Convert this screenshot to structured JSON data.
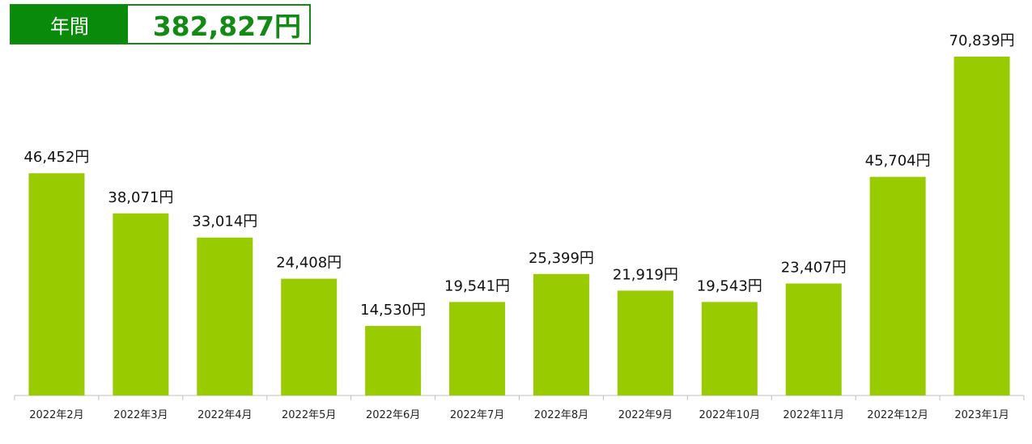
{
  "summary": {
    "label": "年間",
    "value": "382,827円"
  },
  "colors": {
    "bar": "#99cc00",
    "summary_green": "#0a8a0a",
    "axis": "#bfbfbf"
  },
  "chart_data": {
    "type": "bar",
    "categories": [
      "2022年2月",
      "2022年3月",
      "2022年4月",
      "2022年5月",
      "2022年6月",
      "2022年7月",
      "2022年8月",
      "2022年9月",
      "2022年10月",
      "2022年11月",
      "2022年12月",
      "2023年1月"
    ],
    "values": [
      46452,
      38071,
      33014,
      24408,
      14530,
      19541,
      25399,
      21919,
      19543,
      23407,
      45704,
      70839
    ],
    "data_labels": [
      "46,452円",
      "38,071円",
      "33,014円",
      "24,408円",
      "14,530円",
      "19,541円",
      "25,399円",
      "21,919円",
      "19,543円",
      "23,407円",
      "45,704円",
      "70,839円"
    ],
    "grid": false,
    "legend": "none"
  }
}
